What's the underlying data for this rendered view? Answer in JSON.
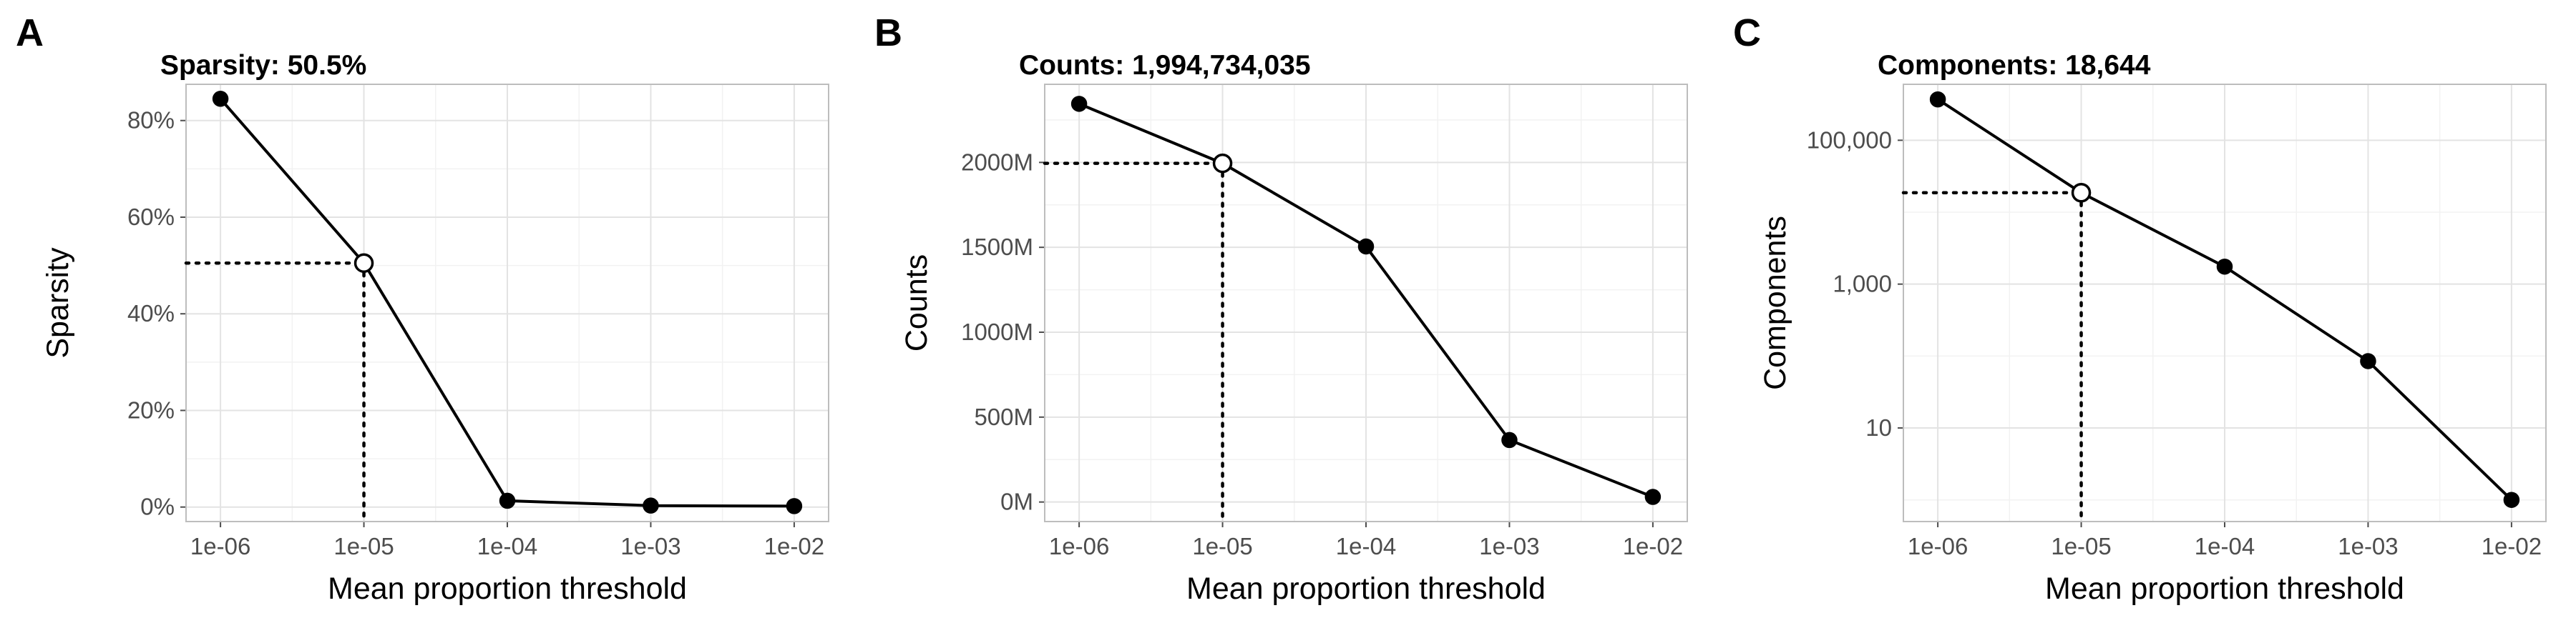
{
  "chart_data": [
    {
      "type": "line",
      "panel_label": "A",
      "title": "Sparsity: 50.5%",
      "xlabel": "Mean proportion threshold",
      "ylabel": "Sparsity",
      "x_scale": "log10",
      "x_ticks": [
        "1e-06",
        "1e-05",
        "1e-04",
        "1e-03",
        "1e-02"
      ],
      "x": [
        1e-06,
        1e-05,
        0.0001,
        0.001,
        0.01
      ],
      "y": [
        0.845,
        0.505,
        0.013,
        0.003,
        0.002
      ],
      "highlight": {
        "x": 1e-05,
        "y": 0.505
      },
      "y_scale": "linear",
      "y_ticks": [
        0,
        0.2,
        0.4,
        0.6,
        0.8
      ],
      "y_tick_labels": [
        "0%",
        "20%",
        "40%",
        "60%",
        "80%"
      ],
      "ylim": [
        -0.03,
        0.875
      ],
      "grid": true
    },
    {
      "type": "line",
      "panel_label": "B",
      "title": "Counts: 1,994,734,035",
      "xlabel": "Mean proportion threshold",
      "ylabel": "Counts",
      "x_scale": "log10",
      "x_ticks": [
        "1e-06",
        "1e-05",
        "1e-04",
        "1e-03",
        "1e-02"
      ],
      "x": [
        1e-06,
        1e-05,
        0.0001,
        0.001,
        0.01
      ],
      "y": [
        2345000000,
        1994734035,
        1505000000,
        365000000,
        30000000
      ],
      "highlight": {
        "x": 1e-05,
        "y": 1994734035
      },
      "y_scale": "linear",
      "y_ticks": [
        0,
        500000000,
        1000000000,
        1500000000,
        2000000000
      ],
      "y_tick_labels": [
        "0M",
        "500M",
        "1000M",
        "1500M",
        "2000M"
      ],
      "ylim": [
        -115000000,
        2460000000
      ],
      "grid": true
    },
    {
      "type": "line",
      "panel_label": "C",
      "title": "Components: 18,644",
      "xlabel": "Mean proportion threshold",
      "ylabel": "Components",
      "x_scale": "log10",
      "x_ticks": [
        "1e-06",
        "1e-05",
        "1e-04",
        "1e-03",
        "1e-02"
      ],
      "x": [
        1e-06,
        1e-05,
        0.0001,
        0.001,
        0.01
      ],
      "y": [
        370000,
        18644,
        1750,
        85,
        1
      ],
      "highlight": {
        "x": 1e-05,
        "y": 18644
      },
      "y_scale": "log10",
      "y_ticks": [
        10,
        1000,
        100000
      ],
      "y_tick_labels": [
        "10",
        "1,000",
        "100,000"
      ],
      "ylim": [
        0.5,
        600000
      ],
      "grid": true
    }
  ]
}
